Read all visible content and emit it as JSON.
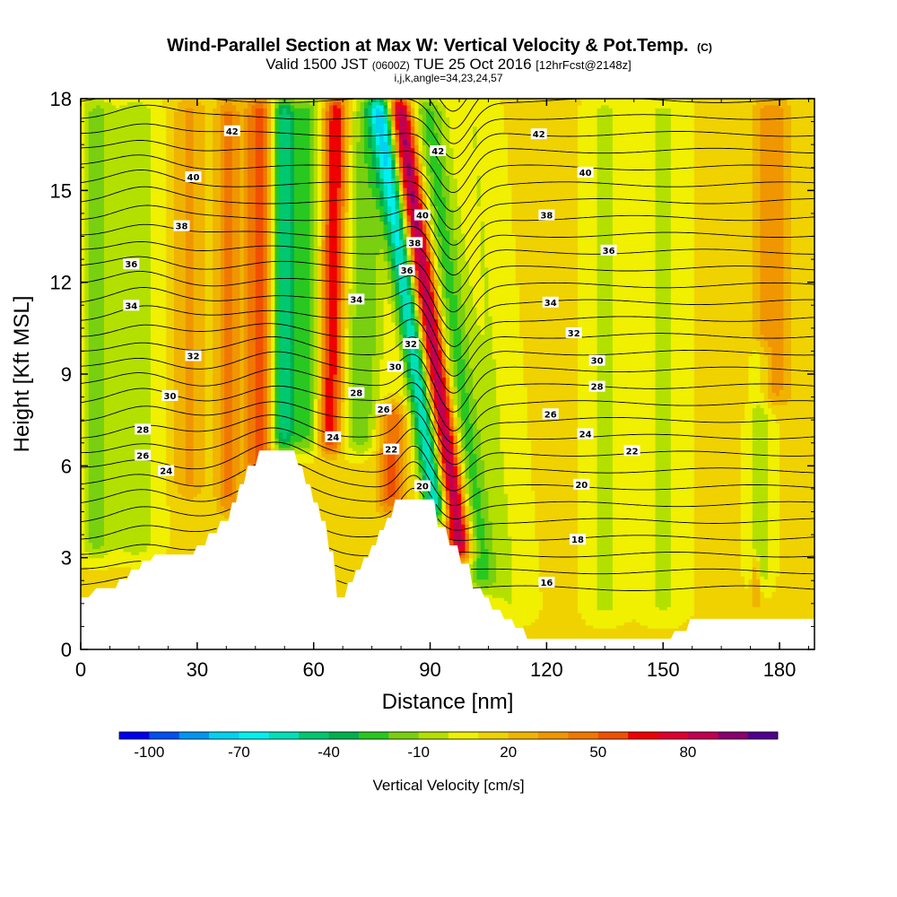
{
  "title": {
    "main": "Wind-Parallel Section at Max W: Vertical Velocity & Pot.Temp.",
    "main_suffix": "(C)",
    "valid_prefix": "Valid 1500 JST",
    "valid_utc": "(0600Z)",
    "valid_date": "TUE 25 Oct 2016",
    "forecast": "[12hrFcst@2148z]",
    "indices": "i,j,k,angle=34,23,24,57"
  },
  "chart_data": {
    "type": "heatmap",
    "xlabel": "Distance [nm]",
    "ylabel": "Height [Kft MSL]",
    "xlim": [
      0,
      189
    ],
    "ylim": [
      0,
      18
    ],
    "x_ticks": [
      0,
      30,
      60,
      90,
      120,
      150,
      180
    ],
    "y_ticks": [
      0,
      3,
      6,
      9,
      12,
      15,
      18
    ],
    "colorbar": {
      "label": "Vertical Velocity [cm/s]",
      "tick_labels": [
        "-100",
        "-70",
        "-40",
        "-10",
        "20",
        "50",
        "80"
      ],
      "tick_values": [
        -100,
        -70,
        -40,
        -10,
        20,
        50,
        80
      ],
      "range": [
        -100,
        100
      ],
      "bins": 20,
      "colors": [
        "#0000f0",
        "#0050f0",
        "#0096f0",
        "#00d2f0",
        "#00f0f0",
        "#00e0b8",
        "#00c870",
        "#00b050",
        "#28c820",
        "#78d010",
        "#b4e000",
        "#f0f000",
        "#f0d200",
        "#f0b400",
        "#f09600",
        "#f07800",
        "#f05000",
        "#f00000",
        "#e00030",
        "#c00050",
        "#8c0070",
        "#500090"
      ]
    },
    "velocity_field": [
      {
        "center": 46,
        "width": 3.5,
        "bottom": 5.5,
        "top": 18,
        "amp": 45,
        "tilt": 0.0
      },
      {
        "center": 38,
        "width": 3.0,
        "bottom": 4.5,
        "top": 18,
        "amp": 30,
        "tilt": 0.0
      },
      {
        "center": 52,
        "width": 3.0,
        "bottom": 6.5,
        "top": 18,
        "amp": -55,
        "tilt": 0.0
      },
      {
        "center": 58,
        "width": 4.0,
        "bottom": 6.5,
        "top": 18,
        "amp": -35,
        "tilt": 0.0
      },
      {
        "center": 64,
        "width": 3.0,
        "bottom": 6.5,
        "top": 18,
        "amp": 60,
        "tilt": 0.15
      },
      {
        "center": 72,
        "width": 5.0,
        "bottom": 6.5,
        "top": 18,
        "amp": -30,
        "tilt": 0.2
      },
      {
        "center": 80,
        "width": 3.5,
        "bottom": 4.5,
        "top": 8,
        "amp": 40,
        "tilt": 0.0
      },
      {
        "center": 90,
        "width": 3.0,
        "bottom": 4.3,
        "top": 18,
        "amp": -75,
        "tilt": -1.1
      },
      {
        "center": 95,
        "width": 3.0,
        "bottom": 3.0,
        "top": 18,
        "amp": 85,
        "tilt": -1.1
      },
      {
        "center": 100,
        "width": 4.0,
        "bottom": 2.0,
        "top": 18,
        "amp": -35,
        "tilt": -0.9
      },
      {
        "center": 108,
        "width": 6.0,
        "bottom": 1.0,
        "top": 18,
        "amp": -12,
        "tilt": -0.6
      },
      {
        "center": 4,
        "width": 4.0,
        "bottom": 3.0,
        "top": 18,
        "amp": -25,
        "tilt": 0.0
      },
      {
        "center": 14,
        "width": 6.0,
        "bottom": 3.0,
        "top": 18,
        "amp": -18,
        "tilt": 0.0
      },
      {
        "center": 28,
        "width": 4.0,
        "bottom": 5.0,
        "top": 18,
        "amp": 20,
        "tilt": 0.0
      },
      {
        "center": 135,
        "width": 5.0,
        "bottom": 1.0,
        "top": 18,
        "amp": -15,
        "tilt": 0.0
      },
      {
        "center": 150,
        "width": 6.0,
        "bottom": 1.0,
        "top": 18,
        "amp": -14,
        "tilt": 0.0
      },
      {
        "center": 178,
        "width": 5.0,
        "bottom": 8.0,
        "top": 18,
        "amp": 25,
        "tilt": 0.0
      },
      {
        "center": 175,
        "width": 3.0,
        "bottom": 2.0,
        "top": 10,
        "amp": -20,
        "tilt": 0.0
      },
      {
        "center": 174,
        "width": 1.2,
        "bottom": 1.5,
        "top": 3.0,
        "amp": 30,
        "tilt": 0.0
      }
    ],
    "base_velocity": 12,
    "terrain": [
      [
        0,
        1.7
      ],
      [
        2,
        1.7
      ],
      [
        4,
        2.0
      ],
      [
        9,
        2.0
      ],
      [
        10,
        2.3
      ],
      [
        12,
        2.3
      ],
      [
        13,
        2.6
      ],
      [
        15,
        2.6
      ],
      [
        16,
        2.9
      ],
      [
        18,
        2.9
      ],
      [
        19,
        3.1
      ],
      [
        29,
        3.1
      ],
      [
        30,
        3.4
      ],
      [
        32,
        3.4
      ],
      [
        33,
        3.8
      ],
      [
        35,
        3.8
      ],
      [
        36,
        4.2
      ],
      [
        38,
        4.2
      ],
      [
        39,
        4.8
      ],
      [
        40,
        4.8
      ],
      [
        41,
        5.4
      ],
      [
        42,
        5.4
      ],
      [
        43,
        6.0
      ],
      [
        45,
        6.0
      ],
      [
        46,
        6.5
      ],
      [
        55,
        6.5
      ],
      [
        56,
        6.0
      ],
      [
        57,
        6.0
      ],
      [
        58,
        5.4
      ],
      [
        59,
        5.4
      ],
      [
        60,
        4.8
      ],
      [
        61,
        4.8
      ],
      [
        62,
        4.2
      ],
      [
        63,
        4.2
      ],
      [
        64,
        3.2
      ],
      [
        65,
        3.2
      ],
      [
        66,
        1.7
      ],
      [
        68,
        1.7
      ],
      [
        69,
        2.2
      ],
      [
        70,
        2.2
      ],
      [
        71,
        2.6
      ],
      [
        72,
        2.6
      ],
      [
        73,
        3.0
      ],
      [
        74,
        3.0
      ],
      [
        75,
        3.4
      ],
      [
        76,
        3.4
      ],
      [
        77,
        3.9
      ],
      [
        78,
        3.9
      ],
      [
        79,
        4.3
      ],
      [
        80,
        4.3
      ],
      [
        81,
        4.9
      ],
      [
        91,
        4.9
      ],
      [
        92,
        4.0
      ],
      [
        94,
        4.0
      ],
      [
        95,
        3.4
      ],
      [
        97,
        3.4
      ],
      [
        98,
        2.8
      ],
      [
        100,
        2.8
      ],
      [
        101,
        2.0
      ],
      [
        103,
        2.0
      ],
      [
        104,
        1.7
      ],
      [
        105,
        1.7
      ],
      [
        106,
        1.3
      ],
      [
        108,
        1.3
      ],
      [
        109,
        1.0
      ],
      [
        111,
        1.0
      ],
      [
        112,
        0.7
      ],
      [
        114,
        0.7
      ],
      [
        115,
        0.35
      ],
      [
        152,
        0.35
      ],
      [
        153,
        0.6
      ],
      [
        156,
        0.6
      ],
      [
        157,
        1.0
      ],
      [
        189,
        1.0
      ]
    ],
    "theta_range": [
      14,
      45
    ],
    "theta_step": 1,
    "contour_labels": [
      {
        "text": "42",
        "x": 39,
        "y": 16.95
      },
      {
        "text": "40",
        "x": 29,
        "y": 15.45
      },
      {
        "text": "38",
        "x": 26,
        "y": 13.85
      },
      {
        "text": "36",
        "x": 13,
        "y": 12.6
      },
      {
        "text": "34",
        "x": 13,
        "y": 11.25
      },
      {
        "text": "32",
        "x": 29,
        "y": 9.6
      },
      {
        "text": "30",
        "x": 23,
        "y": 8.3
      },
      {
        "text": "28",
        "x": 16,
        "y": 7.2
      },
      {
        "text": "26",
        "x": 16,
        "y": 6.35
      },
      {
        "text": "24",
        "x": 22,
        "y": 5.85
      },
      {
        "text": "34",
        "x": 71,
        "y": 11.45
      },
      {
        "text": "32",
        "x": 85,
        "y": 10.0
      },
      {
        "text": "30",
        "x": 81,
        "y": 9.25
      },
      {
        "text": "28",
        "x": 71,
        "y": 8.4
      },
      {
        "text": "26",
        "x": 78,
        "y": 7.85
      },
      {
        "text": "24",
        "x": 65,
        "y": 6.95
      },
      {
        "text": "22",
        "x": 80,
        "y": 6.55
      },
      {
        "text": "20",
        "x": 88,
        "y": 5.35
      },
      {
        "text": "42",
        "x": 92,
        "y": 16.3
      },
      {
        "text": "40",
        "x": 88,
        "y": 14.2
      },
      {
        "text": "38",
        "x": 86,
        "y": 13.3
      },
      {
        "text": "36",
        "x": 84,
        "y": 12.4
      },
      {
        "text": "42",
        "x": 118,
        "y": 16.85
      },
      {
        "text": "40",
        "x": 130,
        "y": 15.6
      },
      {
        "text": "38",
        "x": 120,
        "y": 14.2
      },
      {
        "text": "36",
        "x": 136,
        "y": 13.05
      },
      {
        "text": "34",
        "x": 121,
        "y": 11.35
      },
      {
        "text": "32",
        "x": 127,
        "y": 10.35
      },
      {
        "text": "30",
        "x": 133,
        "y": 9.45
      },
      {
        "text": "28",
        "x": 133,
        "y": 8.6
      },
      {
        "text": "26",
        "x": 121,
        "y": 7.7
      },
      {
        "text": "24",
        "x": 130,
        "y": 7.05
      },
      {
        "text": "22",
        "x": 142,
        "y": 6.5
      },
      {
        "text": "20",
        "x": 129,
        "y": 5.4
      },
      {
        "text": "18",
        "x": 128,
        "y": 3.6
      },
      {
        "text": "16",
        "x": 120,
        "y": 2.2
      }
    ]
  }
}
